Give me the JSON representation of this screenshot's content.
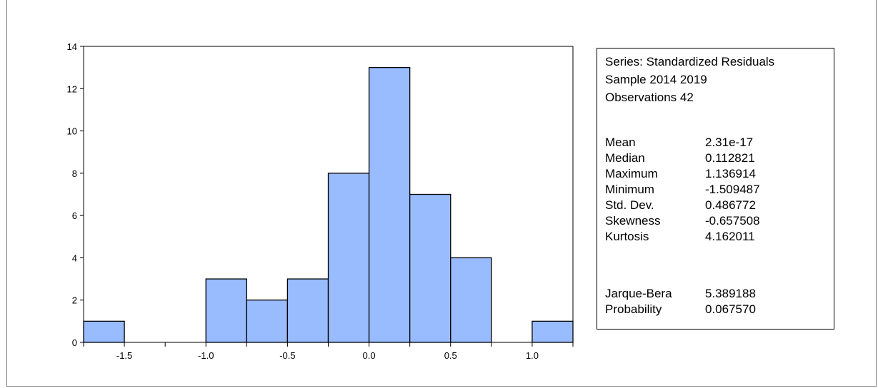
{
  "chart_data": {
    "type": "bar",
    "series_name": "Standardized Residuals",
    "bins": [
      {
        "from": -1.75,
        "to": -1.5,
        "count": 1
      },
      {
        "from": -1.5,
        "to": -1.25,
        "count": 0
      },
      {
        "from": -1.25,
        "to": -1.0,
        "count": 0
      },
      {
        "from": -1.0,
        "to": -0.75,
        "count": 3
      },
      {
        "from": -0.75,
        "to": -0.5,
        "count": 2
      },
      {
        "from": -0.5,
        "to": -0.25,
        "count": 3
      },
      {
        "from": -0.25,
        "to": 0.0,
        "count": 8
      },
      {
        "from": 0.0,
        "to": 0.25,
        "count": 13
      },
      {
        "from": 0.25,
        "to": 0.5,
        "count": 7
      },
      {
        "from": 0.5,
        "to": 0.75,
        "count": 4
      },
      {
        "from": 0.75,
        "to": 1.0,
        "count": 0
      },
      {
        "from": 1.0,
        "to": 1.25,
        "count": 1
      }
    ],
    "xlim": [
      -1.75,
      1.25
    ],
    "ylim": [
      0,
      14
    ],
    "x_ticks": [
      "-1.5",
      "-1.0",
      "-0.5",
      "0.0",
      "0.5",
      "1.0"
    ],
    "x_tick_values": [
      -1.5,
      -1.0,
      -0.5,
      0.0,
      0.5,
      1.0
    ],
    "y_ticks": [
      "0",
      "2",
      "4",
      "6",
      "8",
      "10",
      "12",
      "14"
    ],
    "y_tick_values": [
      0,
      2,
      4,
      6,
      8,
      10,
      12,
      14
    ],
    "bar_color": "#99bbff",
    "grid": false
  },
  "stats_box": {
    "series_line": "Series: Standardized Residuals",
    "sample_line": "Sample 2014 2019",
    "observations_line": "Observations 42",
    "rows": [
      {
        "label": "Mean",
        "value": "2.31e-17"
      },
      {
        "label": "Median",
        "value": "0.112821"
      },
      {
        "label": "Maximum",
        "value": "1.136914"
      },
      {
        "label": "Minimum",
        "value": "-1.509487"
      },
      {
        "label": "Std. Dev.",
        "value": "0.486772"
      },
      {
        "label": "Skewness",
        "value": "-0.657508"
      },
      {
        "label": "Kurtosis",
        "value": "4.162011"
      }
    ],
    "test_rows": [
      {
        "label": "Jarque-Bera",
        "value": "5.389188"
      },
      {
        "label": "Probability",
        "value": "0.067570"
      }
    ]
  }
}
